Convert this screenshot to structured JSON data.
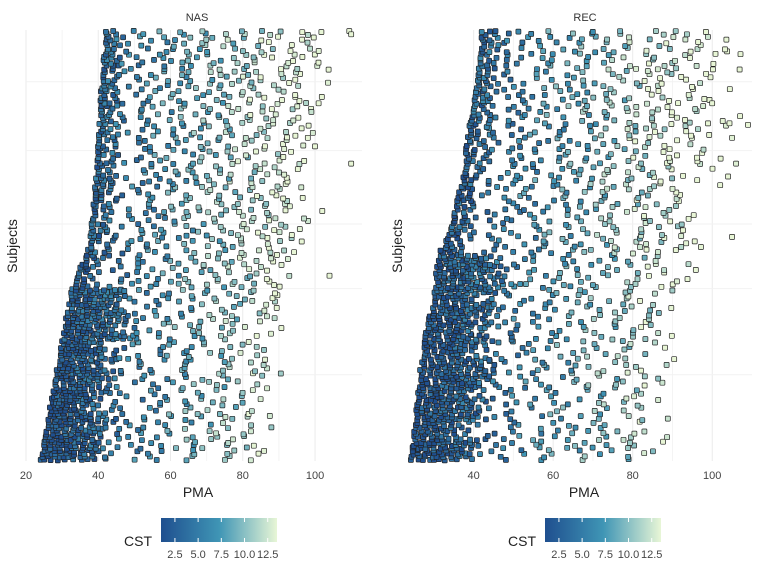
{
  "chart_data": [
    {
      "type": "scatter",
      "panel": "NAS",
      "xlabel": "PMA",
      "ylabel": "Subjects",
      "xlim": [
        20,
        113
      ],
      "xticks": [
        20,
        40,
        60,
        80,
        100
      ],
      "grid": true,
      "marker": "square",
      "color_encoding": "CST",
      "max_x": 110,
      "envelope_min_x": [
        [
          0.0,
          24
        ],
        [
          0.06,
          25
        ],
        [
          0.14,
          27
        ],
        [
          0.24,
          29
        ],
        [
          0.33,
          31
        ],
        [
          0.41,
          33
        ],
        [
          0.44,
          34
        ],
        [
          0.48,
          37
        ],
        [
          0.55,
          38
        ],
        [
          0.65,
          39
        ],
        [
          0.75,
          40
        ],
        [
          0.9,
          41
        ],
        [
          1.0,
          42
        ]
      ],
      "envelope_max_x": [
        [
          0.0,
          88
        ],
        [
          0.2,
          92
        ],
        [
          0.4,
          96
        ],
        [
          0.55,
          100
        ],
        [
          0.75,
          103
        ],
        [
          0.9,
          107
        ],
        [
          1.0,
          110
        ]
      ],
      "dense_region": {
        "subjects_to": 0.4,
        "x_from": 26,
        "x_to": 40
      }
    },
    {
      "type": "scatter",
      "panel": "REC",
      "xlabel": "PMA",
      "ylabel": "Subjects",
      "xlim": [
        24,
        110
      ],
      "xticks": [
        40,
        60,
        80,
        100
      ],
      "grid": true,
      "marker": "square",
      "color_encoding": "CST",
      "max_x": 109,
      "envelope_min_x": [
        [
          0.0,
          24
        ],
        [
          0.08,
          25
        ],
        [
          0.18,
          26
        ],
        [
          0.3,
          28
        ],
        [
          0.4,
          30
        ],
        [
          0.48,
          31
        ],
        [
          0.52,
          33
        ],
        [
          0.58,
          35
        ],
        [
          0.66,
          37
        ],
        [
          0.78,
          39
        ],
        [
          0.9,
          41
        ],
        [
          1.0,
          42
        ]
      ],
      "envelope_max_x": [
        [
          0.0,
          89
        ],
        [
          0.2,
          92
        ],
        [
          0.4,
          96
        ],
        [
          0.6,
          100
        ],
        [
          0.8,
          106
        ],
        [
          1.0,
          109
        ]
      ],
      "dense_region": {
        "subjects_to": 0.48,
        "x_from": 26,
        "x_to": 40
      }
    }
  ],
  "legends": [
    {
      "title": "CST",
      "ticks": [
        "2.5",
        "5.0",
        "7.5",
        "10.0",
        "12.5"
      ],
      "tick_values": [
        2.5,
        5.0,
        7.5,
        10.0,
        12.5
      ],
      "range": [
        1,
        13.5
      ]
    },
    {
      "title": "CST",
      "ticks": [
        "2.5",
        "5.0",
        "7.5",
        "10.0",
        "12.5"
      ],
      "tick_values": [
        2.5,
        5.0,
        7.5,
        10.0,
        12.5
      ],
      "range": [
        1,
        13.5
      ]
    }
  ],
  "colors": {
    "low": "#1f4f8f",
    "mid": "#3f95b5",
    "high": "#e8f6d6",
    "grid": "#ebebeb",
    "point_outline": "#222222"
  }
}
